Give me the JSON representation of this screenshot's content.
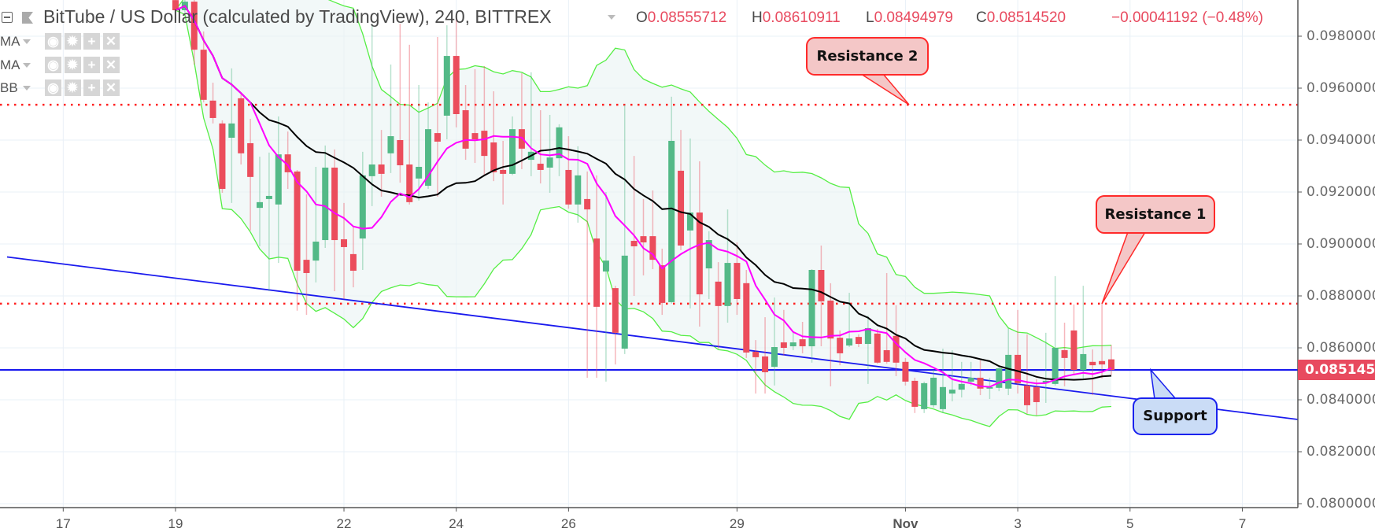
{
  "header": {
    "title": "BitTube / US Dollar (calculated by TradingView), 240, BITTREX",
    "open_label": "O",
    "open": "0.08555712",
    "high_label": "H",
    "high": "0.08610911",
    "low_label": "L",
    "low": "0.08494979",
    "close_label": "C",
    "close": "0.08514520",
    "change": "−0.00041192 (−0.48%)"
  },
  "legend": [
    {
      "label": "MA",
      "color": "#ff00ff"
    },
    {
      "label": "MA",
      "color": "#000000"
    },
    {
      "label": "BB",
      "color": "#55ee44"
    }
  ],
  "legend_icons": [
    "eye-icon",
    "gear-icon",
    "plus-icon",
    "close-icon"
  ],
  "colors": {
    "up": "#53b987",
    "down": "#eb4d5c",
    "resistance": "#ff2020",
    "support": "#1a1aee",
    "band_fill": "#e9f4f4"
  },
  "chart_data": {
    "type": "candlestick",
    "interval": "240",
    "exchange": "BITTREX",
    "ylim": [
      0.0799,
      0.0994
    ],
    "grid": true,
    "y_ticks": [
      "0.08000000",
      "0.08200000",
      "0.08400000",
      "0.08600000",
      "0.08800000",
      "0.09000000",
      "0.09200000",
      "0.09400000",
      "0.09600000",
      "0.09800000"
    ],
    "x_ticks": [
      {
        "label": "17",
        "date": "Oct 17"
      },
      {
        "label": "19",
        "date": "Oct 19"
      },
      {
        "label": "22",
        "date": "Oct 22"
      },
      {
        "label": "24",
        "date": "Oct 24"
      },
      {
        "label": "26",
        "date": "Oct 26"
      },
      {
        "label": "29",
        "date": "Oct 29"
      },
      {
        "label": "Nov",
        "date": "Nov 1",
        "bold": true
      },
      {
        "label": "3",
        "date": "Nov 3"
      },
      {
        "label": "5",
        "date": "Nov 5"
      },
      {
        "label": "7",
        "date": "Nov 7"
      }
    ],
    "last_price": "0.08514520",
    "candle_fields": [
      "open",
      "high",
      "low",
      "close"
    ],
    "days": [
      {
        "date": "Oct 19",
        "candles": [
          [
            0.09939,
            0.09955,
            0.09894,
            0.099
          ],
          [
            0.099,
            0.09948,
            0.09891,
            0.09933
          ],
          [
            0.09933,
            0.09945,
            0.09691,
            0.09748
          ],
          [
            0.09748,
            0.09818,
            0.09545,
            0.09555
          ],
          [
            0.09552,
            0.09621,
            0.09464,
            0.09485
          ],
          [
            0.09464,
            0.09476,
            0.09197,
            0.09212
          ]
        ]
      },
      {
        "date": "Oct 20",
        "candles": [
          [
            0.09409,
            0.09676,
            0.09158,
            0.09464
          ],
          [
            0.09561,
            0.09576,
            0.09306,
            0.09349
          ],
          [
            0.09388,
            0.09482,
            0.09052,
            0.09258
          ],
          [
            0.09139,
            0.09336,
            0.08991,
            0.09161
          ],
          [
            0.09173,
            0.09352,
            0.08818,
            0.09185
          ],
          [
            0.09152,
            0.09491,
            0.08927,
            0.09345
          ]
        ]
      },
      {
        "date": "Oct 21",
        "candles": [
          [
            0.09345,
            0.09433,
            0.09212,
            0.09276
          ],
          [
            0.09279,
            0.09285,
            0.08743,
            0.08897
          ],
          [
            0.08939,
            0.09191,
            0.08727,
            0.08888
          ],
          [
            0.08936,
            0.09297,
            0.08852,
            0.09009
          ],
          [
            0.09015,
            0.09379,
            0.08985,
            0.09294
          ],
          [
            0.09294,
            0.09364,
            0.08818,
            0.09015
          ]
        ]
      },
      {
        "date": "Oct 22",
        "candles": [
          [
            0.09018,
            0.09158,
            0.08788,
            0.08988
          ],
          [
            0.08961,
            0.09067,
            0.08833,
            0.08897
          ],
          [
            0.09021,
            0.09355,
            0.089,
            0.09264
          ],
          [
            0.09261,
            0.09848,
            0.09146,
            0.09306
          ],
          [
            0.09306,
            0.09439,
            0.09182,
            0.0927
          ],
          [
            0.09349,
            0.09691,
            0.09273,
            0.09415
          ]
        ]
      },
      {
        "date": "Oct 23",
        "candles": [
          [
            0.094,
            0.09848,
            0.09236,
            0.09303
          ],
          [
            0.09306,
            0.09767,
            0.09152,
            0.09161
          ],
          [
            0.09252,
            0.09612,
            0.09167,
            0.09297
          ],
          [
            0.09224,
            0.09545,
            0.09212,
            0.09442
          ],
          [
            0.09427,
            0.09797,
            0.09182,
            0.09394
          ],
          [
            0.09494,
            0.09842,
            0.09403,
            0.09724
          ]
        ]
      },
      {
        "date": "Oct 24",
        "candles": [
          [
            0.09724,
            0.09885,
            0.09449,
            0.095
          ],
          [
            0.09515,
            0.09612,
            0.09324,
            0.09367
          ],
          [
            0.09427,
            0.09673,
            0.09312,
            0.09403
          ],
          [
            0.09436,
            0.09685,
            0.09261,
            0.09339
          ],
          [
            0.09391,
            0.09588,
            0.09242,
            0.09276
          ],
          [
            0.09285,
            0.09397,
            0.09152,
            0.0927
          ]
        ]
      },
      {
        "date": "Oct 25",
        "candles": [
          [
            0.0927,
            0.09491,
            0.09265,
            0.09442
          ],
          [
            0.09442,
            0.09658,
            0.09288,
            0.09367
          ],
          [
            0.09324,
            0.09661,
            0.09261,
            0.09355
          ],
          [
            0.09309,
            0.09515,
            0.09233,
            0.09285
          ],
          [
            0.09294,
            0.09497,
            0.09197,
            0.09333
          ],
          [
            0.0933,
            0.09461,
            0.09261,
            0.09449
          ]
        ]
      },
      {
        "date": "Oct 26",
        "candles": [
          [
            0.09285,
            0.09415,
            0.09136,
            0.09152
          ],
          [
            0.09152,
            0.09376,
            0.09082,
            0.09264
          ],
          [
            0.09173,
            0.09279,
            0.08485,
            0.09133
          ],
          [
            0.09021,
            0.09264,
            0.08485,
            0.08758
          ],
          [
            0.08894,
            0.092,
            0.0847,
            0.08936
          ],
          [
            0.0883,
            0.08839,
            0.08536,
            0.08658
          ]
        ]
      },
      {
        "date": "Oct 27",
        "candles": [
          [
            0.08597,
            0.09536,
            0.08576,
            0.08955
          ],
          [
            0.09012,
            0.09339,
            0.088,
            0.08991
          ],
          [
            0.0903,
            0.09173,
            0.08879,
            0.09006
          ],
          [
            0.0903,
            0.09206,
            0.08903,
            0.08939
          ],
          [
            0.08918,
            0.08982,
            0.08727,
            0.08773
          ],
          [
            0.08776,
            0.09567,
            0.0877,
            0.09397
          ]
        ]
      },
      {
        "date": "Oct 28",
        "candles": [
          [
            0.09282,
            0.09439,
            0.08976,
            0.08994
          ],
          [
            0.09052,
            0.09406,
            0.08752,
            0.09121
          ],
          [
            0.09121,
            0.09318,
            0.08682,
            0.08806
          ],
          [
            0.08906,
            0.09049,
            0.08788,
            0.09015
          ],
          [
            0.08855,
            0.0893,
            0.08597,
            0.08761
          ],
          [
            0.08761,
            0.09133,
            0.08697,
            0.08927
          ]
        ]
      },
      {
        "date": "Oct 29",
        "candles": [
          [
            0.08927,
            0.09006,
            0.08727,
            0.08788
          ],
          [
            0.08849,
            0.089,
            0.08561,
            0.08582
          ],
          [
            0.08585,
            0.0863,
            0.08424,
            0.08564
          ],
          [
            0.08567,
            0.08718,
            0.08424,
            0.08506
          ],
          [
            0.08527,
            0.08794,
            0.08455,
            0.08603
          ],
          [
            0.08621,
            0.08746,
            0.0857,
            0.086
          ]
        ]
      },
      {
        "date": "Oct 30",
        "candles": [
          [
            0.08606,
            0.08661,
            0.08591,
            0.08621
          ],
          [
            0.08633,
            0.087,
            0.08579,
            0.08606
          ],
          [
            0.08606,
            0.08903,
            0.08543,
            0.089
          ],
          [
            0.089,
            0.08994,
            0.08606,
            0.08779
          ],
          [
            0.08782,
            0.08849,
            0.08452,
            0.08636
          ],
          [
            0.08639,
            0.08667,
            0.08533,
            0.08579
          ]
        ]
      },
      {
        "date": "Oct 31",
        "candles": [
          [
            0.08609,
            0.08812,
            0.08603,
            0.08636
          ],
          [
            0.08642,
            0.08652,
            0.08603,
            0.08615
          ],
          [
            0.08615,
            0.08724,
            0.08461,
            0.08676
          ],
          [
            0.08655,
            0.08673,
            0.08539,
            0.08543
          ],
          [
            0.08591,
            0.08888,
            0.08539,
            0.08546
          ],
          [
            0.08646,
            0.08764,
            0.08491,
            0.08543
          ]
        ]
      },
      {
        "date": "Nov 1",
        "candles": [
          [
            0.08546,
            0.08561,
            0.08455,
            0.0847
          ],
          [
            0.08473,
            0.08485,
            0.08349,
            0.08373
          ],
          [
            0.08364,
            0.0847,
            0.08349,
            0.08464
          ],
          [
            0.08379,
            0.08515,
            0.0837,
            0.08485
          ],
          [
            0.08364,
            0.08597,
            0.08349,
            0.08449
          ],
          [
            0.08424,
            0.08591,
            0.08394,
            0.08439
          ]
        ]
      },
      {
        "date": "Nov 2",
        "candles": [
          [
            0.08439,
            0.08546,
            0.08409,
            0.08461
          ],
          [
            0.0847,
            0.08546,
            0.08455,
            0.08485
          ],
          [
            0.08485,
            0.08552,
            0.08418,
            0.08443
          ],
          [
            0.08443,
            0.08485,
            0.08403,
            0.08449
          ],
          [
            0.08446,
            0.08527,
            0.08433,
            0.08521
          ],
          [
            0.08443,
            0.08676,
            0.08418,
            0.08573
          ]
        ]
      },
      {
        "date": "Nov 3",
        "candles": [
          [
            0.08573,
            0.08746,
            0.08424,
            0.08464
          ],
          [
            0.08455,
            0.08652,
            0.08346,
            0.08379
          ],
          [
            0.08449,
            0.08479,
            0.0834,
            0.08391
          ],
          [
            0.08467,
            0.08658,
            0.08388,
            0.08473
          ],
          [
            0.08461,
            0.08876,
            0.08455,
            0.086
          ],
          [
            0.08591,
            0.08697,
            0.08452,
            0.08561
          ]
        ]
      },
      {
        "date": "Nov 4",
        "candles": [
          [
            0.08667,
            0.08767,
            0.08494,
            0.08515
          ],
          [
            0.08515,
            0.08839,
            0.08476,
            0.08576
          ],
          [
            0.08546,
            0.08594,
            0.08418,
            0.08533
          ],
          [
            0.08549,
            0.0877,
            0.08482,
            0.08536
          ],
          [
            0.08555712,
            0.08610911,
            0.08494979,
            0.0851452
          ]
        ]
      }
    ],
    "levels": [
      {
        "label": "Resistance 2",
        "price": 0.09536,
        "style": "dotted",
        "color": "#ff2020"
      },
      {
        "label": "Resistance 1",
        "price": 0.0877,
        "style": "dotted",
        "color": "#ff2020"
      },
      {
        "label": "Support",
        "price": 0.08515,
        "style": "solid",
        "color": "#1a1aee"
      }
    ],
    "trendline": {
      "color": "#1a1aee",
      "points": [
        {
          "date": "Oct 16",
          "hour": 0,
          "price": 0.0895
        },
        {
          "date": "Nov 8",
          "hour": 0,
          "price": 0.08324
        }
      ]
    }
  }
}
